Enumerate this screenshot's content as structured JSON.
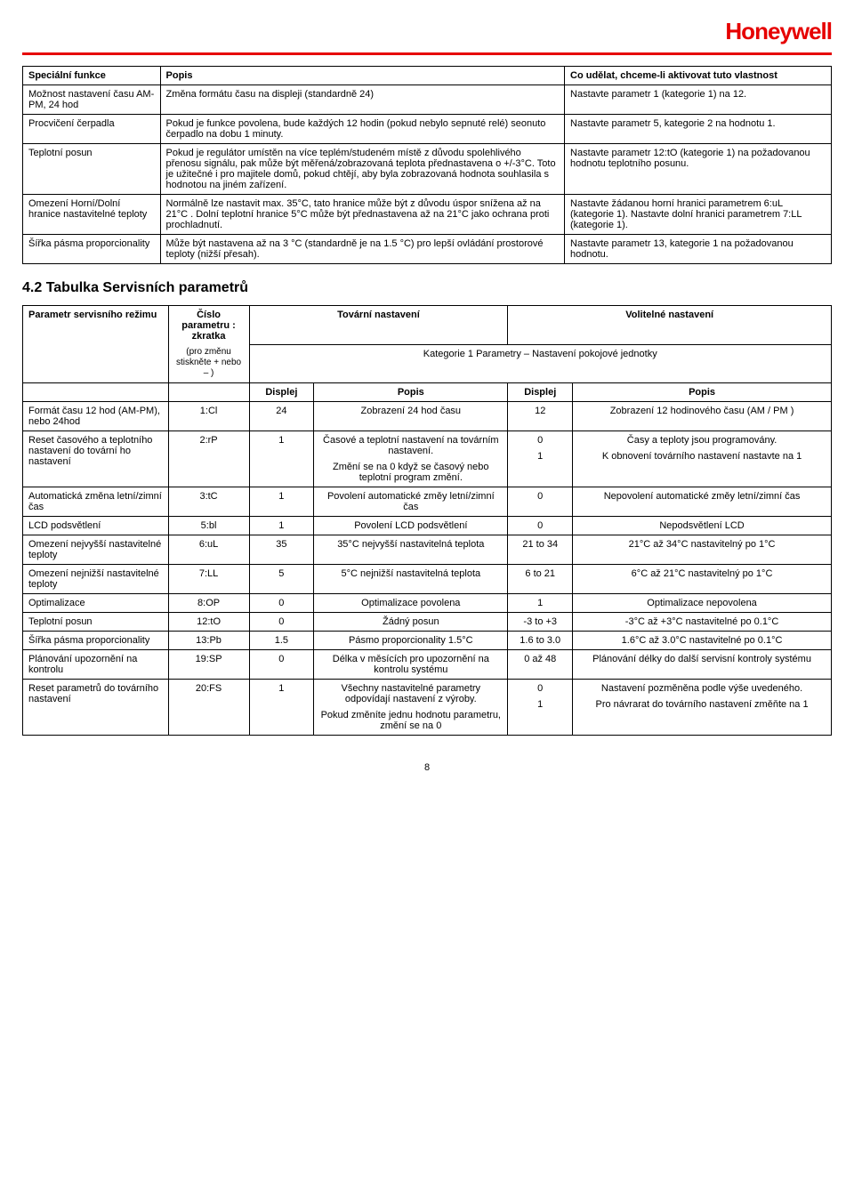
{
  "header": {
    "brand": "Honeywell"
  },
  "table1": {
    "head": {
      "c1": "Speciální funkce",
      "c2": "Popis",
      "c3": "Co udělat, chceme-li aktivovat tuto vlastnost"
    },
    "rows": [
      {
        "f": "Možnost nastavení času AM-PM, 24 hod",
        "d": "Změna formátu času na displeji (standardně 24)",
        "a": "Nastavte parametr 1 (kategorie 1) na 12."
      },
      {
        "f": "Procvičení čerpadla",
        "d": "Pokud je funkce povolena, bude každých 12 hodin (pokud nebylo sepnuté relé) seonuto čerpadlo na dobu 1 minuty.",
        "a": "Nastavte parametr 5, kategorie 2 na hodnotu 1."
      },
      {
        "f": "Teplotní posun",
        "d": "Pokud je regulátor umístěn na více teplém/studeném místě z důvodu spolehlivého přenosu signálu, pak může být měřená/zobrazovaná teplota přednastavena o +/-3°C. Toto je užitečné i pro majitele domů, pokud chtějí, aby byla zobrazovaná hodnota souhlasila s hodnotou na jiném zařízení.",
        "a": "Nastavte parametr 12:tO (kategorie 1) na požadovanou hodnotu teplotního posunu."
      },
      {
        "f": "Omezení Horní/Dolní hranice nastavitelné teploty",
        "d": "Normálně lze nastavit max. 35°C, tato hranice může být z důvodu úspor snížena až na 21°C . Dolní teplotní hranice 5°C může být přednastavena až na 21°C jako ochrana proti prochladnutí.",
        "a": "Nastavte žádanou horní hranici parametrem 6:uL (kategorie 1). Nastavte dolní hranici parametrem 7:LL (kategorie 1)."
      },
      {
        "f": "Šířka pásma proporcionality",
        "d": "Může být nastavena až na 3 °C (standardně je na 1.5 °C) pro lepší ovládání prostorové teploty (nižší přesah).",
        "a": "Nastavte parametr 13, kategorie 1 na požadovanou hodnotu."
      }
    ]
  },
  "section_heading": "4.2 Tabulka Servisních parametrů",
  "table2": {
    "head": {
      "c1": "Parametr servisního režimu",
      "c2a": "Číslo parametru  : zkratka",
      "c2b": "(pro změnu stiskněte + nebo – )",
      "c3": "Tovární nastavení",
      "c4": "Volitelné nastavení"
    },
    "category_row": "Kategorie 1 Parametry – Nastavení pokojové jednotky",
    "subhead": {
      "s3": "Displej",
      "s4": "Popis",
      "s5": "Displej",
      "s6": "Popis"
    },
    "rows": [
      {
        "p": "Formát času 12 hod (AM-PM), nebo 24hod",
        "code": "1:Cl",
        "fd": "24",
        "fdesc": "Zobrazení 24 hod času",
        "od": "12",
        "odesc": "Zobrazení 12 hodinového času (AM / PM )"
      },
      {
        "p": "Reset časového a teplotního nastavení do tovární ho nastavení",
        "code": "2:rP",
        "fd": "1",
        "fdesc": "Časové a teplotní nastavení na továrním nastavení.\nZmění se na 0 když se časový nebo teplotní program změní.",
        "od": "0\n1",
        "odesc": "Časy a teploty jsou programovány.\nK obnovení továrního nastavení nastavte na 1"
      },
      {
        "p": "Automatická změna letní/zimní čas",
        "code": "3:tC",
        "fd": "1",
        "fdesc": "Povolení automatické změy letní/zimní čas",
        "od": "0",
        "odesc": "Nepovolení automatické změy letní/zimní čas"
      },
      {
        "p": "LCD podsvětlení",
        "code": "5:bl",
        "fd": "1",
        "fdesc": "Povolení LCD podsvětlení",
        "od": "0",
        "odesc": "Nepodsvětlení LCD"
      },
      {
        "p": "Omezení nejvyšší nastavitelné teploty",
        "code": "6:uL",
        "fd": "35",
        "fdesc": "35°C nejvyšší nastavitelná teplota",
        "od": "21 to 34",
        "odesc": "21°C až 34°C nastavitelný po 1°C"
      },
      {
        "p": "Omezení nejnižší nastavitelné teploty",
        "code": "7:LL",
        "fd": "5",
        "fdesc": "5°C nejnižší nastavitelná teplota",
        "od": "6 to 21",
        "odesc": "6°C až 21°C nastavitelný po 1°C"
      },
      {
        "p": "Optimalizace",
        "code": "8:OP",
        "fd": "0",
        "fdesc": "Optimalizace povolena",
        "od": "1",
        "odesc": "Optimalizace nepovolena"
      },
      {
        "p": "Teplotní posun",
        "code": "12:tO",
        "fd": "0",
        "fdesc": "Žádný posun",
        "od": "-3 to +3",
        "odesc": "-3°C až +3°C nastavitelné po 0.1°C"
      },
      {
        "p": "Šířka pásma proporcionality",
        "code": "13:Pb",
        "fd": "1.5",
        "fdesc": "Pásmo proporcionality 1.5°C",
        "od": "1.6 to 3.0",
        "odesc": "1.6°C až 3.0°C nastavitelné po 0.1°C"
      },
      {
        "p": "Plánování upozornění na kontrolu",
        "code": "19:SP",
        "fd": "0",
        "fdesc": "Délka v měsících pro upozornění na kontrolu systému",
        "od": "0 až 48",
        "odesc": "Plánování délky do další servisní kontroly systému"
      },
      {
        "p": "Reset parametrů do továrního nastavení",
        "code": "20:FS",
        "fd": "1",
        "fdesc": "Všechny nastavitelné parametry odpovídají nastavení z výroby.\nPokud změníte jednu hodnotu parametru, změní se na 0",
        "od": "0\n1",
        "odesc": "Nastavení pozměněna podle výše uvedeného.\nPro návrarat do továrního nastavení změňte na 1"
      }
    ]
  },
  "page_number": "8"
}
